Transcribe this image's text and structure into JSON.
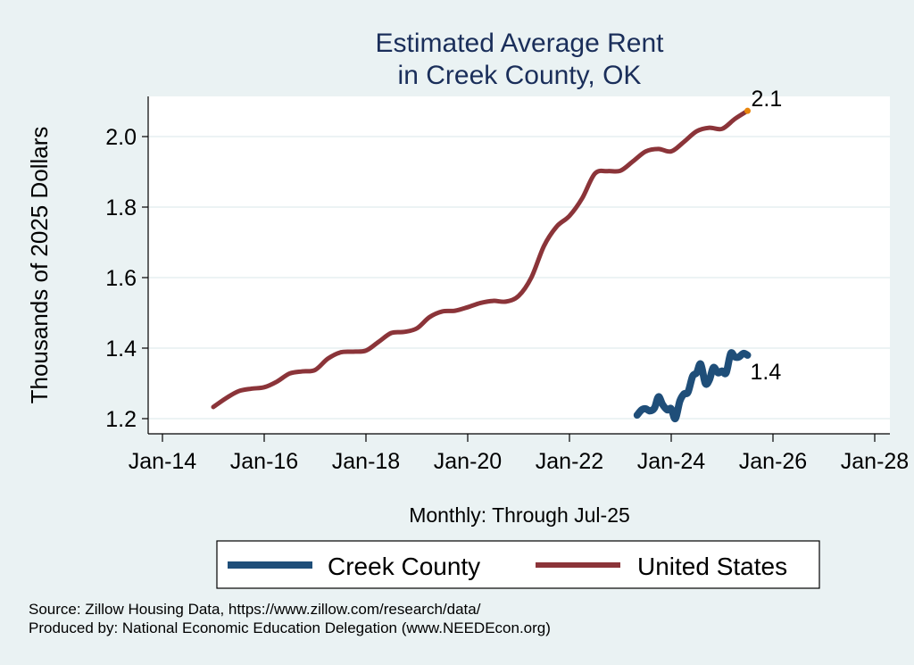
{
  "chart_data": {
    "type": "line",
    "title_lines": [
      "Estimated Average Rent",
      "in Creek County, OK"
    ],
    "ylabel": "Thousands of 2025 Dollars",
    "xlabel": "Monthly: Through Jul-25",
    "ylim": [
      1.17,
      2.11
    ],
    "xlim": [
      2013.72,
      2028.3
    ],
    "yticks": [
      {
        "value": 1.2,
        "label": "1.2"
      },
      {
        "value": 1.4,
        "label": "1.4"
      },
      {
        "value": 1.6,
        "label": "1.6"
      },
      {
        "value": 1.8,
        "label": "1.8"
      },
      {
        "value": 2.0,
        "label": "2.0"
      }
    ],
    "xticks": [
      {
        "value": 2014,
        "label": "Jan-14"
      },
      {
        "value": 2016,
        "label": "Jan-16"
      },
      {
        "value": 2018,
        "label": "Jan-18"
      },
      {
        "value": 2020,
        "label": "Jan-20"
      },
      {
        "value": 2022,
        "label": "Jan-22"
      },
      {
        "value": 2024,
        "label": "Jan-24"
      },
      {
        "value": 2026,
        "label": "Jan-26"
      },
      {
        "value": 2028,
        "label": "Jan-28"
      }
    ],
    "grid": true,
    "legend_position": "bottom",
    "series": [
      {
        "name": "Creek County",
        "color": "#1f4e79",
        "end_label": "1.4",
        "x": [
          2023.33,
          2023.42,
          2023.5,
          2023.58,
          2023.67,
          2023.75,
          2023.83,
          2023.92,
          2024.0,
          2024.08,
          2024.17,
          2024.25,
          2024.33,
          2024.42,
          2024.5,
          2024.58,
          2024.67,
          2024.75,
          2024.83,
          2024.92,
          2025.0,
          2025.08,
          2025.17,
          2025.25,
          2025.33,
          2025.42,
          2025.5
        ],
        "values": [
          1.21,
          1.225,
          1.228,
          1.222,
          1.23,
          1.262,
          1.24,
          1.225,
          1.228,
          1.2,
          1.25,
          1.27,
          1.275,
          1.32,
          1.33,
          1.355,
          1.3,
          1.31,
          1.345,
          1.33,
          1.335,
          1.33,
          1.385,
          1.375,
          1.375,
          1.385,
          1.38
        ]
      },
      {
        "name": "United States",
        "color": "#8b3439",
        "end_label": "2.1",
        "end_marker_color": "#e8850c",
        "x": [
          2015.0,
          2015.25,
          2015.5,
          2015.75,
          2016.0,
          2016.25,
          2016.5,
          2016.75,
          2017.0,
          2017.25,
          2017.5,
          2017.75,
          2018.0,
          2018.25,
          2018.5,
          2018.75,
          2019.0,
          2019.25,
          2019.5,
          2019.75,
          2020.0,
          2020.25,
          2020.5,
          2020.75,
          2021.0,
          2021.25,
          2021.5,
          2021.75,
          2022.0,
          2022.25,
          2022.5,
          2022.75,
          2023.0,
          2023.25,
          2023.5,
          2023.75,
          2024.0,
          2024.25,
          2024.5,
          2024.75,
          2025.0,
          2025.25,
          2025.5
        ],
        "values": [
          1.233,
          1.258,
          1.278,
          1.285,
          1.289,
          1.305,
          1.328,
          1.334,
          1.338,
          1.37,
          1.388,
          1.39,
          1.393,
          1.418,
          1.443,
          1.446,
          1.456,
          1.488,
          1.504,
          1.506,
          1.516,
          1.528,
          1.534,
          1.532,
          1.548,
          1.6,
          1.69,
          1.745,
          1.775,
          1.825,
          1.895,
          1.902,
          1.903,
          1.93,
          1.958,
          1.965,
          1.958,
          1.985,
          2.015,
          2.025,
          2.022,
          2.05,
          2.073
        ]
      }
    ]
  },
  "footer": {
    "source": "Source: Zillow Housing Data, https://www.zillow.com/research/data/",
    "produced_by": "Produced by: National Economic Education Delegation (www.NEEDEcon.org)"
  }
}
